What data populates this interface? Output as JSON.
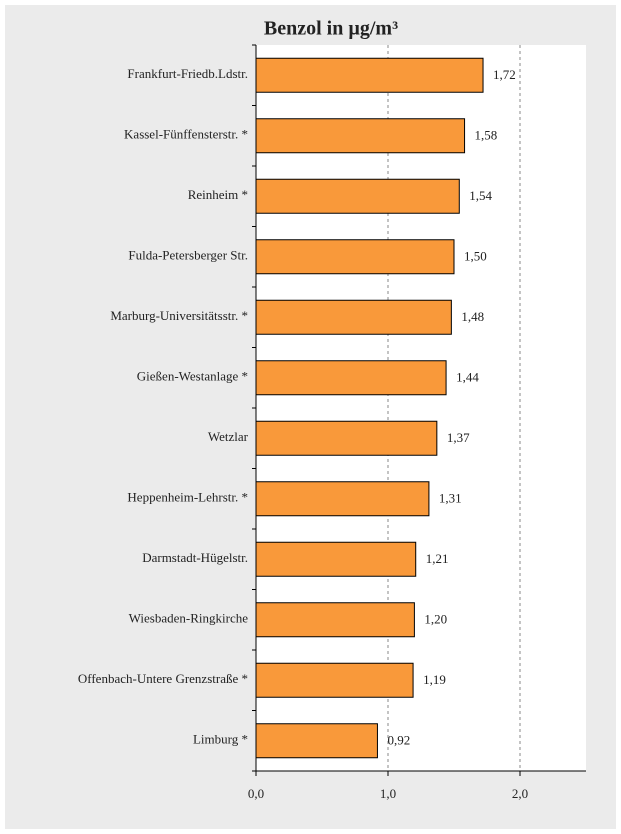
{
  "chart_data": {
    "type": "barh",
    "title": "Benzol in µg/m³",
    "categories": [
      "Frankfurt-Friedb.Ldstr.",
      "Kassel-Fünffensterstr. *",
      "Reinheim *",
      "Fulda-Petersberger Str.",
      "Marburg-Universitätsstr. *",
      "Gießen-Westanlage *",
      "Wetzlar",
      "Heppenheim-Lehrstr. *",
      "Darmstadt-Hügelstr.",
      "Wiesbaden-Ringkirche",
      "Offenbach-Untere Grenzstraße *",
      "Limburg *"
    ],
    "values": [
      1.72,
      1.58,
      1.54,
      1.5,
      1.48,
      1.44,
      1.37,
      1.31,
      1.21,
      1.2,
      1.19,
      0.92
    ],
    "value_labels": [
      "1,72",
      "1,58",
      "1,54",
      "1,50",
      "1,48",
      "1,44",
      "1,37",
      "1,31",
      "1,21",
      "1,20",
      "1,19",
      "0,92"
    ],
    "color": "#f9993a",
    "xlim": [
      0,
      2.5
    ],
    "xticks": [
      {
        "value": 0,
        "label": "0,0"
      },
      {
        "value": 1,
        "label": "1,0"
      },
      {
        "value": 2,
        "label": "2,0"
      }
    ],
    "grid": true
  }
}
